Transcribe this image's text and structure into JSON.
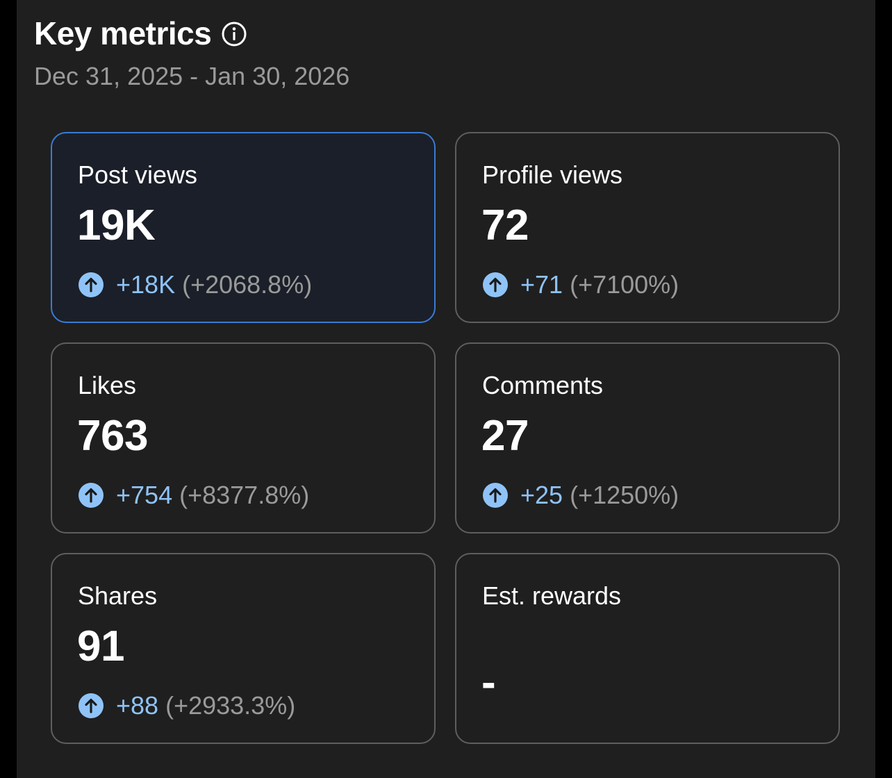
{
  "header": {
    "title": "Key metrics",
    "date_range": "Dec 31, 2025 - Jan 30, 2026",
    "info_icon": "info-icon"
  },
  "colors": {
    "background": "#1f1f1f",
    "card_border": "#5e5e5e",
    "active_border": "#3a7bd5",
    "positive_delta": "#8fc3f7",
    "muted_text": "#9a9a9a"
  },
  "metrics": [
    {
      "label": "Post views",
      "value": "19K",
      "delta": "+18K",
      "delta_pct": "(+2068.8%)",
      "icon": "arrow-up-circle-icon",
      "active": true
    },
    {
      "label": "Profile views",
      "value": "72",
      "delta": "+71",
      "delta_pct": "(+7100%)",
      "icon": "arrow-up-circle-icon",
      "active": false
    },
    {
      "label": "Likes",
      "value": "763",
      "delta": "+754",
      "delta_pct": "(+8377.8%)",
      "icon": "arrow-up-circle-icon",
      "active": false
    },
    {
      "label": "Comments",
      "value": "27",
      "delta": "+25",
      "delta_pct": "(+1250%)",
      "icon": "arrow-up-circle-icon",
      "active": false
    },
    {
      "label": "Shares",
      "value": "91",
      "delta": "+88",
      "delta_pct": "(+2933.3%)",
      "icon": "arrow-up-circle-icon",
      "active": false
    },
    {
      "label": "Est. rewards",
      "value": "-",
      "active": false
    }
  ]
}
